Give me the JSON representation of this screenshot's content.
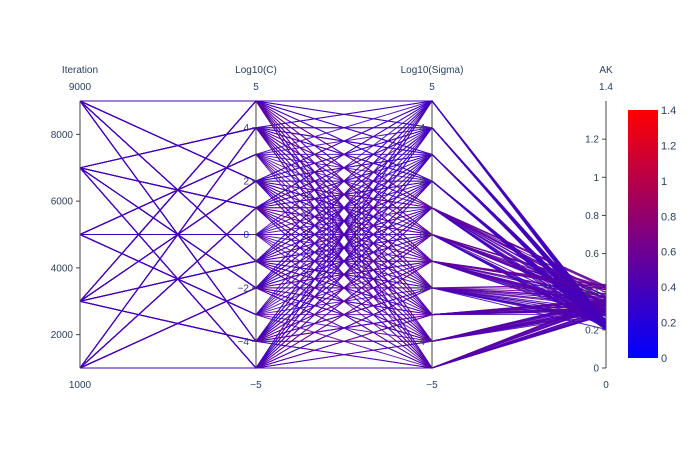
{
  "chart_data": {
    "type": "parallel_coordinates",
    "dimensions": [
      {
        "label": "Iteration",
        "range": [
          1000,
          9000
        ],
        "range_labels": {
          "min": "1000",
          "max": "9000"
        },
        "ticks": [
          2000,
          4000,
          6000,
          8000
        ],
        "tick_labels": [
          "2000",
          "4000",
          "6000",
          "8000"
        ],
        "levels": [
          1000,
          3000,
          5000,
          7000,
          9000
        ]
      },
      {
        "label": "Log10(C)",
        "range": [
          -5,
          5
        ],
        "range_labels": {
          "min": "−5",
          "max": "5"
        },
        "ticks": [
          -4,
          -2,
          0,
          2,
          4
        ],
        "tick_labels": [
          "−4",
          "−2",
          "0",
          "2",
          "4"
        ],
        "levels": [
          -5,
          -4,
          -3,
          -2,
          -1,
          0,
          1,
          2,
          3,
          4,
          5
        ]
      },
      {
        "label": "Log10(Sigma)",
        "range": [
          -5,
          5
        ],
        "range_labels": {
          "min": "−5",
          "max": "5"
        },
        "ticks": [
          -4,
          -2,
          0,
          2,
          4
        ],
        "tick_labels": [
          "−4",
          "−2",
          "0",
          "2",
          "4"
        ],
        "levels": [
          -5,
          -4,
          -3,
          -2,
          -1,
          0,
          1,
          2,
          3,
          4,
          5
        ]
      },
      {
        "label": "AK",
        "range": [
          0,
          1.4
        ],
        "range_labels": {
          "min": "0",
          "max": "1.4"
        },
        "ticks": [
          0,
          0.2,
          0.4,
          0.6,
          0.8,
          1,
          1.2
        ],
        "tick_labels": [
          "0",
          "0.2",
          "0.4",
          "0.6",
          "0.8",
          "1",
          "1.2"
        ],
        "value_spread": [
          0.2,
          0.44
        ]
      }
    ],
    "line_color_value": "AK",
    "colorscale": [
      "#0000ff",
      "#ff0000"
    ],
    "colorbar": {
      "range": [
        0,
        1.4
      ],
      "ticks": [
        0,
        0.2,
        0.4,
        0.6,
        0.8,
        1,
        1.2,
        1.4
      ],
      "tick_labels": [
        "0",
        "0.2",
        "0.4",
        "0.6",
        "0.8",
        "1",
        "1.2",
        "1.4"
      ]
    },
    "grid": false
  }
}
